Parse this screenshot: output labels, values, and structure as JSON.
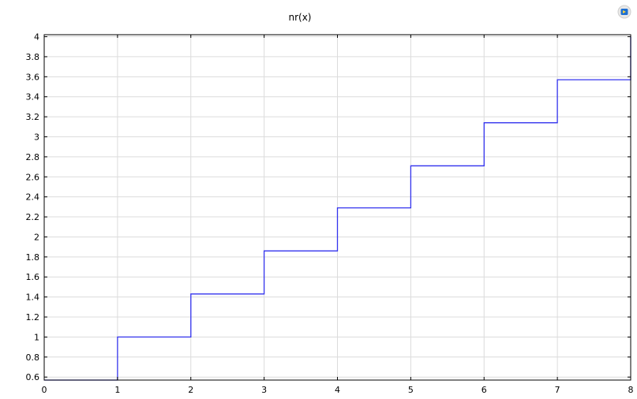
{
  "chart_data": {
    "type": "line",
    "title": "nr(x)",
    "xlabel": "",
    "ylabel": "",
    "xlim": [
      0,
      8
    ],
    "ylim": [
      0.57,
      4.02
    ],
    "x_ticks": [
      0,
      1,
      2,
      3,
      4,
      5,
      6,
      7,
      8
    ],
    "y_ticks": [
      0.6,
      0.8,
      1,
      1.2,
      1.4,
      1.6,
      1.8,
      2,
      2.2,
      2.4,
      2.6,
      2.8,
      3,
      3.2,
      3.4,
      3.6,
      3.8,
      4
    ],
    "x_tick_labels": [
      "0",
      "1",
      "2",
      "3",
      "4",
      "5",
      "6",
      "7",
      "8"
    ],
    "y_tick_labels": [
      "0.6",
      "0.8",
      "1",
      "1.2",
      "1.4",
      "1.6",
      "1.8",
      "2",
      "2.2",
      "2.4",
      "2.6",
      "2.8",
      "3",
      "3.2",
      "3.4",
      "3.6",
      "3.8",
      "4"
    ],
    "grid": true,
    "series": [
      {
        "color": "#3333ee",
        "x": [
          0,
          1,
          1,
          2,
          2,
          3,
          3,
          4,
          4,
          5,
          5,
          6,
          6,
          7,
          7,
          8,
          8
        ],
        "y": [
          0.57,
          0.57,
          1.0,
          1.0,
          1.43,
          1.43,
          1.86,
          1.86,
          2.29,
          2.29,
          2.71,
          2.71,
          3.14,
          3.14,
          3.57,
          3.57,
          4.0
        ]
      }
    ]
  },
  "toolbar": {
    "icon": "comsol-logo-icon"
  }
}
